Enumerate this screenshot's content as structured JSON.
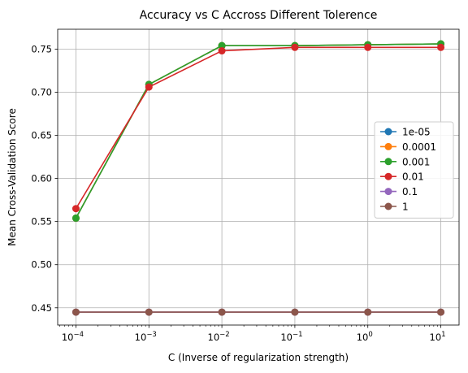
{
  "chart_data": {
    "type": "line",
    "title": "Accuracy vs C Accross Different Tolerence",
    "xlabel": "C (Inverse of regularization strength)",
    "ylabel": "Mean Cross-Validation Score",
    "x_scale": "log",
    "x": [
      0.0001,
      0.001,
      0.01,
      0.1,
      1,
      10
    ],
    "x_tick_labels": [
      {
        "base": "10",
        "exp": "−4"
      },
      {
        "base": "10",
        "exp": "−3"
      },
      {
        "base": "10",
        "exp": "−2"
      },
      {
        "base": "10",
        "exp": "−1"
      },
      {
        "base": "10",
        "exp": "0"
      },
      {
        "base": "10",
        "exp": "1"
      }
    ],
    "y_ticks": [
      "0.45",
      "0.50",
      "0.55",
      "0.60",
      "0.65",
      "0.70",
      "0.75"
    ],
    "ylim": [
      0.43,
      0.773
    ],
    "xlim_log10": [
      -4.25,
      1.25
    ],
    "grid": true,
    "legend_position": "center-right",
    "series": [
      {
        "name": "1e-05",
        "color": "#1f77b4",
        "values": [
          0.554,
          0.709,
          0.754,
          0.754,
          0.755,
          0.756
        ]
      },
      {
        "name": "0.0001",
        "color": "#ff7f0e",
        "values": [
          0.554,
          0.709,
          0.754,
          0.754,
          0.755,
          0.756
        ]
      },
      {
        "name": "0.001",
        "color": "#2ca02c",
        "values": [
          0.554,
          0.709,
          0.754,
          0.754,
          0.755,
          0.756
        ]
      },
      {
        "name": "0.01",
        "color": "#d62728",
        "values": [
          0.565,
          0.706,
          0.748,
          0.752,
          0.752,
          0.752
        ]
      },
      {
        "name": "0.1",
        "color": "#9467bd",
        "values": [
          0.445,
          0.445,
          0.445,
          0.445,
          0.445,
          0.445
        ]
      },
      {
        "name": "1",
        "color": "#8c564b",
        "values": [
          0.445,
          0.445,
          0.445,
          0.445,
          0.445,
          0.445
        ]
      }
    ]
  }
}
